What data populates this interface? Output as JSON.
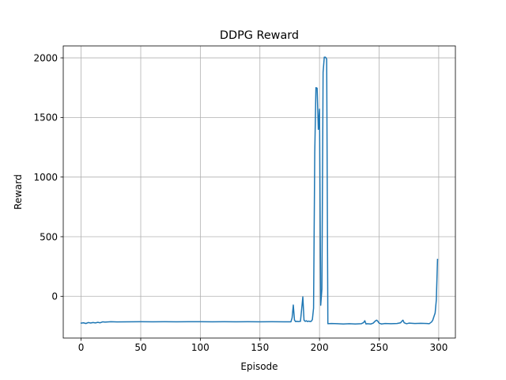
{
  "chart_data": {
    "type": "line",
    "title": "DDPG Reward",
    "xlabel": "Episode",
    "ylabel": "Reward",
    "xlim": [
      -15,
      314
    ],
    "ylim": [
      -350,
      2100
    ],
    "x_ticks": [
      0,
      50,
      100,
      150,
      200,
      250,
      300
    ],
    "y_ticks": [
      0,
      500,
      1000,
      1500,
      2000
    ],
    "grid": true,
    "legend": "none",
    "series": [
      {
        "color": "#1f77b4",
        "points": [
          [
            0,
            -225
          ],
          [
            2,
            -222
          ],
          [
            4,
            -228
          ],
          [
            6,
            -220
          ],
          [
            8,
            -224
          ],
          [
            10,
            -220
          ],
          [
            12,
            -223
          ],
          [
            14,
            -218
          ],
          [
            16,
            -222
          ],
          [
            18,
            -214
          ],
          [
            20,
            -216
          ],
          [
            25,
            -213
          ],
          [
            30,
            -215
          ],
          [
            40,
            -214
          ],
          [
            50,
            -213
          ],
          [
            60,
            -214
          ],
          [
            70,
            -213
          ],
          [
            80,
            -214
          ],
          [
            90,
            -213
          ],
          [
            100,
            -213
          ],
          [
            110,
            -214
          ],
          [
            120,
            -213
          ],
          [
            130,
            -214
          ],
          [
            140,
            -213
          ],
          [
            150,
            -214
          ],
          [
            160,
            -213
          ],
          [
            170,
            -214
          ],
          [
            176,
            -214
          ],
          [
            177,
            -180
          ],
          [
            178,
            -73
          ],
          [
            179,
            -200
          ],
          [
            180,
            -212
          ],
          [
            181,
            -210
          ],
          [
            182,
            -212
          ],
          [
            184,
            -210
          ],
          [
            185,
            -110
          ],
          [
            186,
            -5
          ],
          [
            187,
            -200
          ],
          [
            188,
            -210
          ],
          [
            189,
            -205
          ],
          [
            190,
            -212
          ],
          [
            191,
            -208
          ],
          [
            192,
            -212
          ],
          [
            193,
            -210
          ],
          [
            194,
            -195
          ],
          [
            195,
            -100
          ],
          [
            196,
            1200
          ],
          [
            197,
            1750
          ],
          [
            198,
            1745
          ],
          [
            199,
            1400
          ],
          [
            200,
            1570
          ],
          [
            201,
            -75
          ],
          [
            202,
            60
          ],
          [
            203,
            1880
          ],
          [
            204,
            2005
          ],
          [
            205,
            2005
          ],
          [
            206,
            1990
          ],
          [
            207,
            -230
          ],
          [
            210,
            -228
          ],
          [
            215,
            -230
          ],
          [
            220,
            -232
          ],
          [
            225,
            -230
          ],
          [
            230,
            -232
          ],
          [
            235,
            -230
          ],
          [
            237,
            -220
          ],
          [
            238,
            -205
          ],
          [
            239,
            -232
          ],
          [
            240,
            -230
          ],
          [
            243,
            -232
          ],
          [
            245,
            -225
          ],
          [
            247,
            -205
          ],
          [
            248,
            -200
          ],
          [
            249,
            -210
          ],
          [
            250,
            -225
          ],
          [
            252,
            -232
          ],
          [
            255,
            -228
          ],
          [
            260,
            -230
          ],
          [
            265,
            -228
          ],
          [
            268,
            -222
          ],
          [
            269,
            -210
          ],
          [
            270,
            -200
          ],
          [
            271,
            -222
          ],
          [
            273,
            -230
          ],
          [
            275,
            -225
          ],
          [
            280,
            -228
          ],
          [
            285,
            -226
          ],
          [
            290,
            -228
          ],
          [
            292,
            -230
          ],
          [
            294,
            -215
          ],
          [
            295,
            -200
          ],
          [
            296,
            -170
          ],
          [
            297,
            -140
          ],
          [
            298,
            -30
          ],
          [
            299,
            310
          ]
        ]
      }
    ]
  }
}
